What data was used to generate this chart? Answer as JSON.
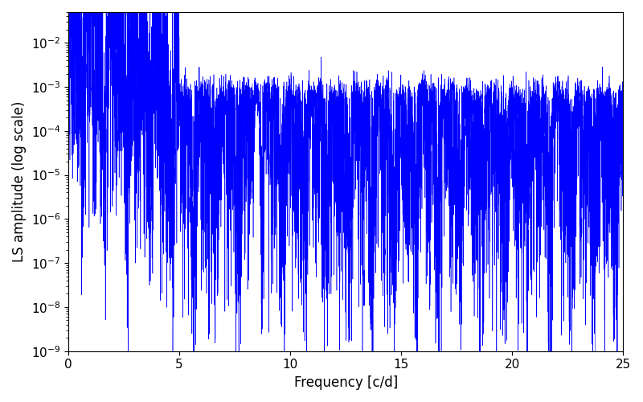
{
  "title": "",
  "xlabel": "Frequency [c/d]",
  "ylabel": "LS amplitude (log scale)",
  "xlim": [
    0,
    25
  ],
  "ylim": [
    1e-09,
    0.05
  ],
  "line_color": "#0000ff",
  "background_color": "#ffffff",
  "figsize": [
    8.0,
    5.0
  ],
  "dpi": 100,
  "n_points": 8000,
  "freq_max": 25.0,
  "seed": 12345,
  "axis_labelsize": 12
}
